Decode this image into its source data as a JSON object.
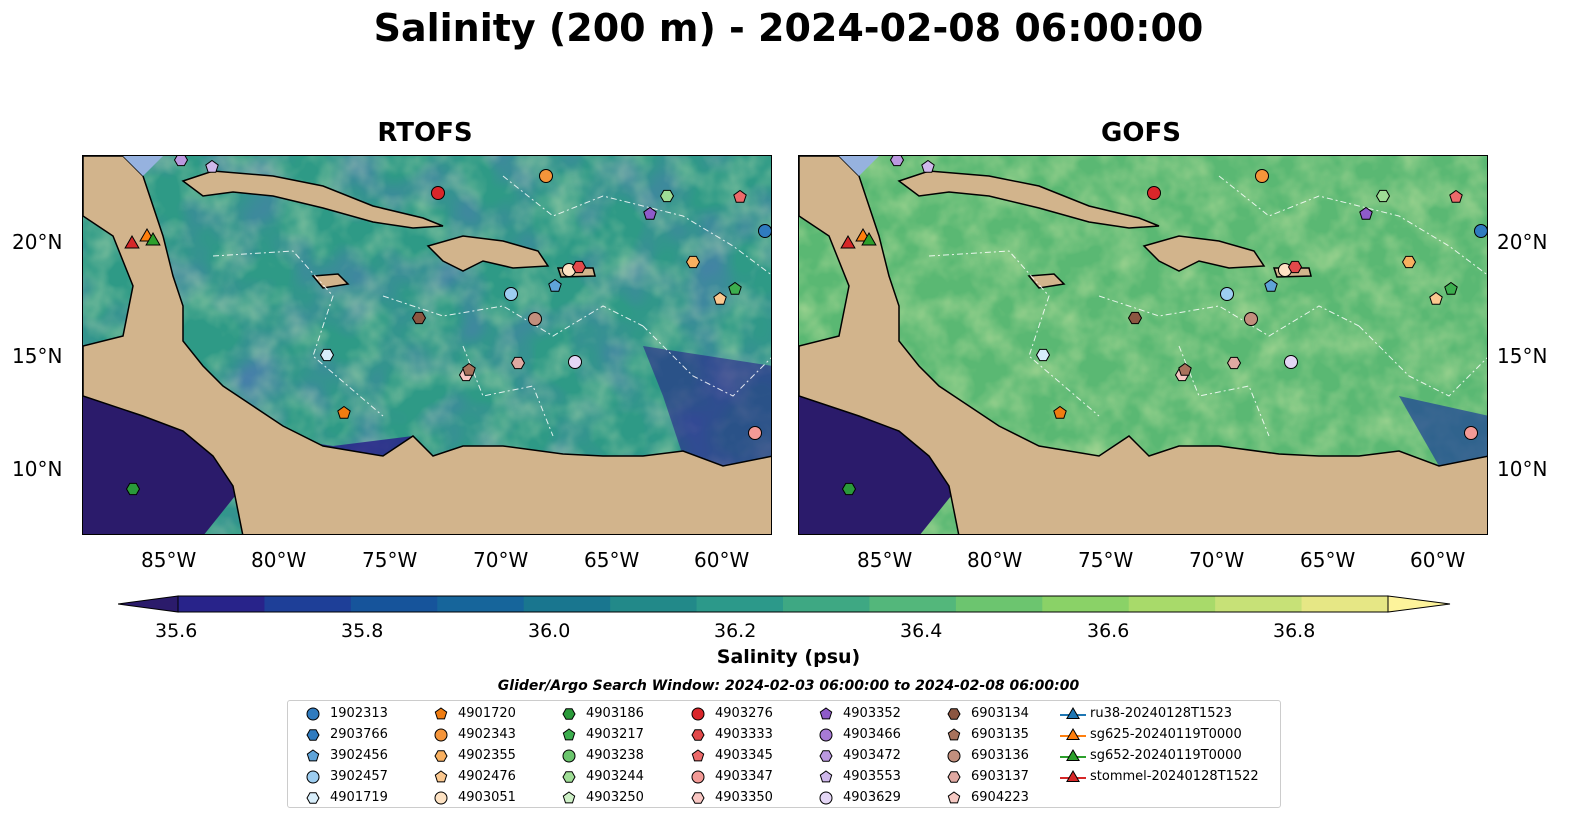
{
  "title": "Salinity (200 m) - 2024-02-08 06:00:00",
  "panels": [
    {
      "title": "RTOFS"
    },
    {
      "title": "GOFS"
    }
  ],
  "lat_labels": [
    "20°N",
    "15°N",
    "10°N"
  ],
  "lon_labels": [
    "85°W",
    "80°W",
    "75°W",
    "70°W",
    "65°W",
    "60°W"
  ],
  "colorbar": {
    "label": "Salinity (psu)",
    "ticks": [
      "35.6",
      "35.8",
      "36.0",
      "36.2",
      "36.4",
      "36.6",
      "36.8"
    ],
    "colors": [
      "#2b1b6b",
      "#28238a",
      "#1e3f98",
      "#16549b",
      "#16659b",
      "#19768f",
      "#228989",
      "#2c998a",
      "#3ea883",
      "#53b77b",
      "#6cc56f",
      "#8ad267",
      "#a8da6a",
      "#c7e177",
      "#e6e785",
      "#fdf39b"
    ]
  },
  "search_window": "Glider/Argo Search Window: 2024-02-03 06:00:00 to 2024-02-08 06:00:00",
  "legend": [
    {
      "label": "1902313",
      "marker": "circle",
      "color": "#2f7bbf"
    },
    {
      "label": "2903766",
      "marker": "hexagon",
      "color": "#2f7bbf"
    },
    {
      "label": "3902456",
      "marker": "pentagon",
      "color": "#5fa3d8"
    },
    {
      "label": "3902457",
      "marker": "circle",
      "color": "#9dcdf0"
    },
    {
      "label": "4901719",
      "marker": "hexagon",
      "color": "#d8eefb"
    },
    {
      "label": "4901720",
      "marker": "pentagon",
      "color": "#f07c10"
    },
    {
      "label": "4902343",
      "marker": "circle",
      "color": "#f5953a"
    },
    {
      "label": "4902355",
      "marker": "hexagon",
      "color": "#f8b060"
    },
    {
      "label": "4902476",
      "marker": "pentagon",
      "color": "#fbc88f"
    },
    {
      "label": "4903051",
      "marker": "circle",
      "color": "#fde2c3"
    },
    {
      "label": "4903186",
      "marker": "hexagon",
      "color": "#2a9a3a"
    },
    {
      "label": "4903217",
      "marker": "pentagon",
      "color": "#3cae4e"
    },
    {
      "label": "4903238",
      "marker": "circle",
      "color": "#6bc56d"
    },
    {
      "label": "4903244",
      "marker": "hexagon",
      "color": "#9fdd96"
    },
    {
      "label": "4903250",
      "marker": "pentagon",
      "color": "#cdf0c6"
    },
    {
      "label": "4903276",
      "marker": "circle",
      "color": "#d9262a"
    },
    {
      "label": "4903333",
      "marker": "hexagon",
      "color": "#e2494a"
    },
    {
      "label": "4903345",
      "marker": "pentagon",
      "color": "#ec6a6a"
    },
    {
      "label": "4903347",
      "marker": "circle",
      "color": "#f39a96"
    },
    {
      "label": "4903350",
      "marker": "hexagon",
      "color": "#f8c6c2"
    },
    {
      "label": "4903352",
      "marker": "pentagon",
      "color": "#8e5bc9"
    },
    {
      "label": "4903466",
      "marker": "circle",
      "color": "#a77ad6"
    },
    {
      "label": "4903472",
      "marker": "hexagon",
      "color": "#bb99e0"
    },
    {
      "label": "4903553",
      "marker": "pentagon",
      "color": "#cfb8eb"
    },
    {
      "label": "4903629",
      "marker": "circle",
      "color": "#e4d6f5"
    },
    {
      "label": "6903134",
      "marker": "hexagon",
      "color": "#8b5641"
    },
    {
      "label": "6903135",
      "marker": "pentagon",
      "color": "#a8725c"
    },
    {
      "label": "6903136",
      "marker": "circle",
      "color": "#c28f7d"
    },
    {
      "label": "6903137",
      "marker": "hexagon",
      "color": "#e0a9a2"
    },
    {
      "label": "6904223",
      "marker": "pentagon",
      "color": "#f6c9c3"
    },
    {
      "label": "ru38-20240128T1523",
      "marker": "triangle-line",
      "color": "#1f77b4"
    },
    {
      "label": "sg625-20240119T0000",
      "marker": "triangle-line",
      "color": "#ff7f0e"
    },
    {
      "label": "sg652-20240119T0000",
      "marker": "triangle-line",
      "color": "#2ca02c"
    },
    {
      "label": "stommel-20240128T1522",
      "marker": "triangle-line",
      "color": "#d62728"
    }
  ],
  "colors": {
    "land": "#d2b48c",
    "shelf": "#96b2df",
    "deep_low": "#2b1b6b"
  }
}
